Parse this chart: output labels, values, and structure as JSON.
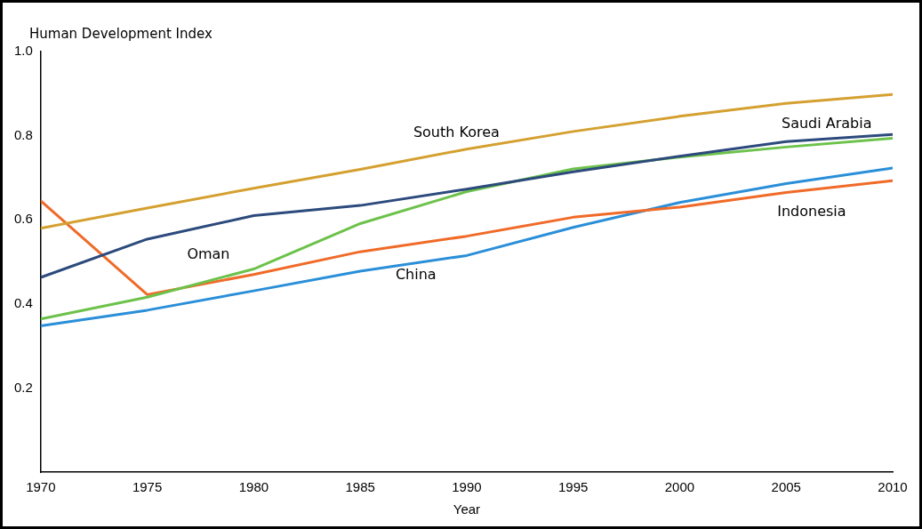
{
  "chart_data": {
    "type": "line",
    "ylabel": "Human Development Index",
    "xlabel": "Year",
    "x": [
      1970,
      1975,
      1980,
      1985,
      1990,
      1995,
      2000,
      2005,
      2010
    ],
    "series": [
      {
        "name": "South Korea",
        "color": "#d4a030",
        "values": [
          0.58,
          0.628,
          0.675,
          0.72,
          0.768,
          0.81,
          0.846,
          0.877,
          0.898
        ]
      },
      {
        "name": "Saudi Arabia",
        "color": "#2c4a7c",
        "values": [
          0.463,
          0.554,
          0.61,
          0.634,
          0.673,
          0.714,
          0.751,
          0.786,
          0.803
        ]
      },
      {
        "name": "Oman",
        "color": "#6cc24a",
        "values": [
          0.364,
          0.416,
          0.483,
          0.591,
          0.667,
          0.721,
          0.749,
          0.773,
          0.794
        ]
      },
      {
        "name": "Indonesia",
        "color": "#f06a28",
        "values": [
          0.645,
          0.422,
          0.47,
          0.524,
          0.561,
          0.606,
          0.63,
          0.665,
          0.693
        ]
      },
      {
        "name": "China",
        "color": "#2a8fd8",
        "values": [
          0.348,
          0.385,
          0.431,
          0.478,
          0.515,
          0.582,
          0.641,
          0.686,
          0.723
        ]
      }
    ],
    "xlim": [
      1970,
      2010
    ],
    "xticks": [
      1970,
      1975,
      1980,
      1985,
      1990,
      1995,
      2000,
      2005,
      2010
    ],
    "ylim": [
      0,
      1
    ],
    "yticks": [
      0.2,
      0.4,
      0.6,
      0.8,
      {
        "value": 1,
        "label": "1.0"
      }
    ],
    "grid": false,
    "legend": false,
    "marker": "none",
    "line_style": "solid"
  }
}
